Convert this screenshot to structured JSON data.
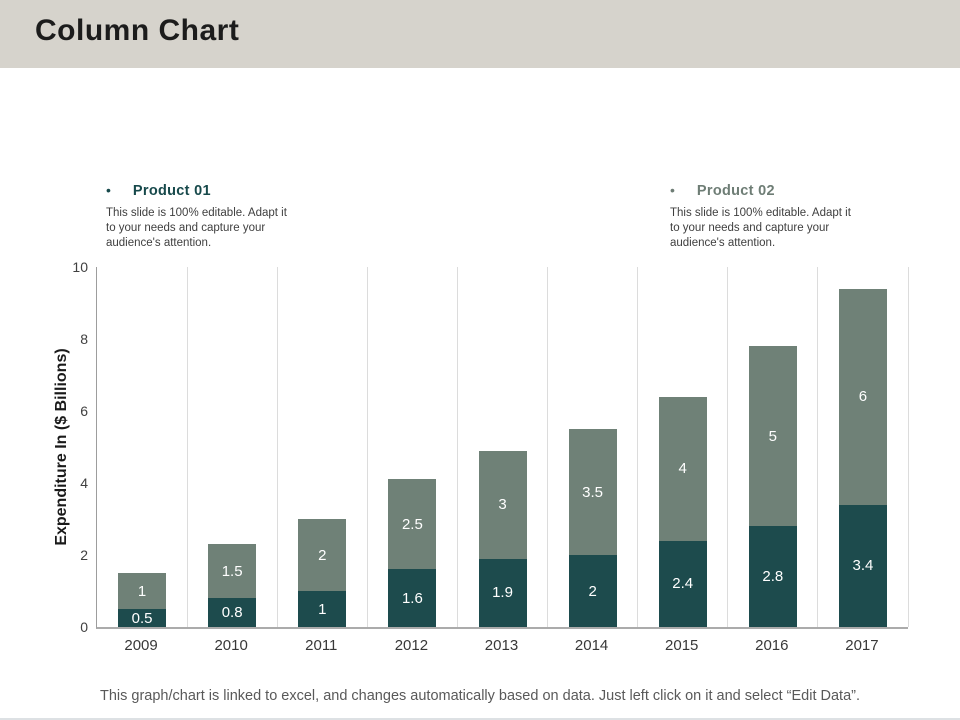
{
  "slide": {
    "title": "Column Chart",
    "footer": "This graph/chart is linked to excel, and changes automatically based on data. Just left click on it and select “Edit Data”."
  },
  "legend": {
    "product1": {
      "bullet": "•",
      "label": "Product 01",
      "description": "This slide is 100% editable. Adapt it to your needs and capture your audience's attention.",
      "color": "#1d4b4d"
    },
    "product2": {
      "bullet": "•",
      "label": "Product 02",
      "description": "This slide is 100% editable. Adapt it to your needs and capture your audience's attention.",
      "color": "#6f8177"
    }
  },
  "chart_data": {
    "type": "bar",
    "stacked": true,
    "title": "",
    "xlabel": "",
    "ylabel": "Expenditure In ($ Billions)",
    "categories": [
      "2009",
      "2010",
      "2011",
      "2012",
      "2013",
      "2014",
      "2015",
      "2016",
      "2017"
    ],
    "series": [
      {
        "name": "Product 01",
        "color": "#1d4b4d",
        "values": [
          0.5,
          0.8,
          1,
          1.6,
          1.9,
          2,
          2.4,
          2.8,
          3.4
        ]
      },
      {
        "name": "Product 02",
        "color": "#6f8177",
        "values": [
          1,
          1.5,
          2,
          2.5,
          3,
          3.5,
          4,
          5,
          6
        ]
      }
    ],
    "ylim": [
      0,
      10
    ],
    "yticks": [
      0,
      2,
      4,
      6,
      8,
      10
    ],
    "grid": "vertical-only",
    "legend_position": "top",
    "value_labels": "inside-white"
  }
}
